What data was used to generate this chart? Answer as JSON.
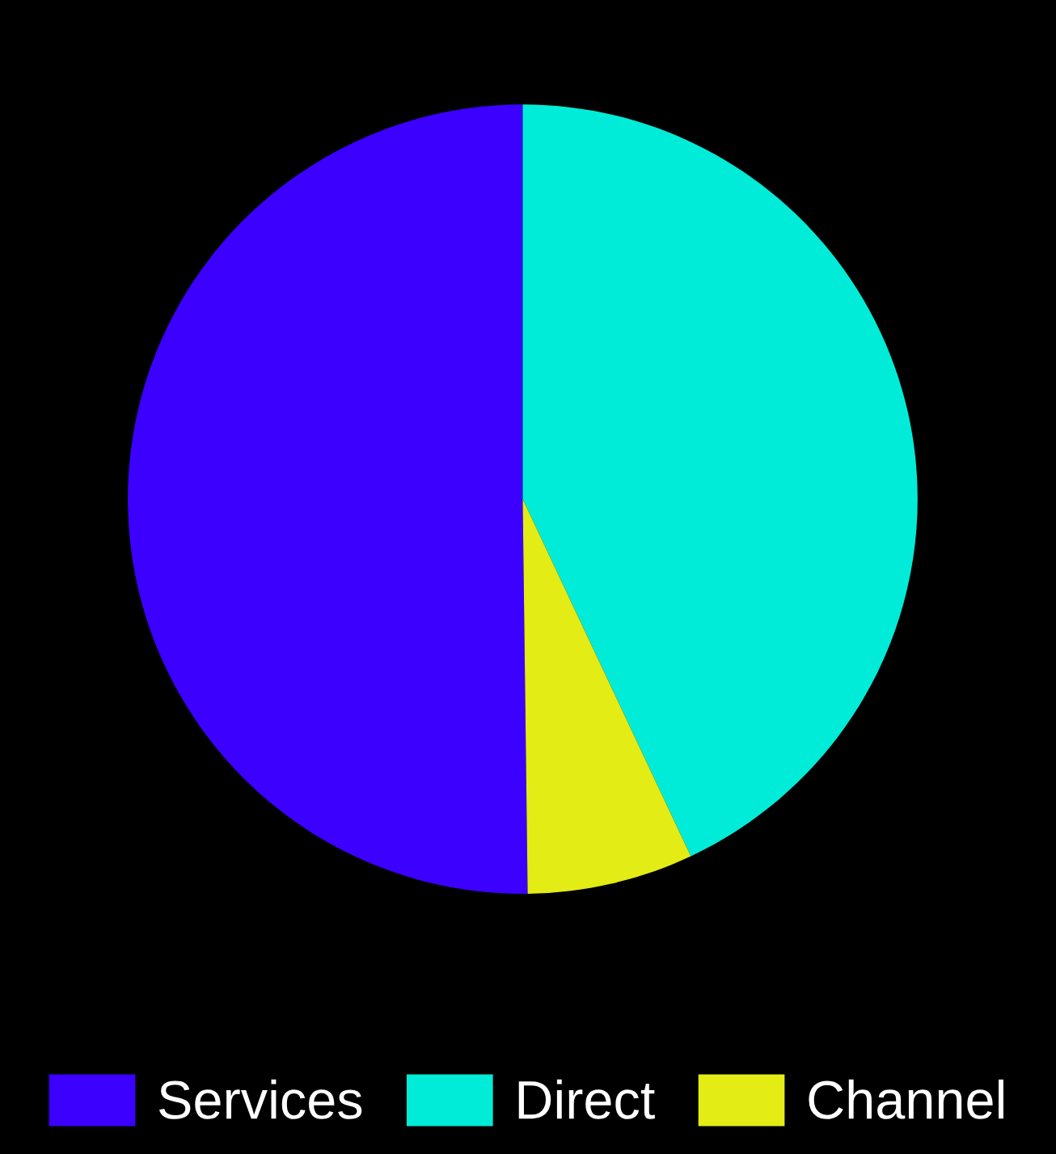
{
  "chart_data": {
    "type": "pie",
    "categories": [
      "Services",
      "Direct",
      "Channel"
    ],
    "values": [
      50.2,
      43.0,
      6.8
    ],
    "colors": [
      "#3b00ff",
      "#00ecd8",
      "#e3ec14"
    ],
    "legend": "bottom"
  }
}
